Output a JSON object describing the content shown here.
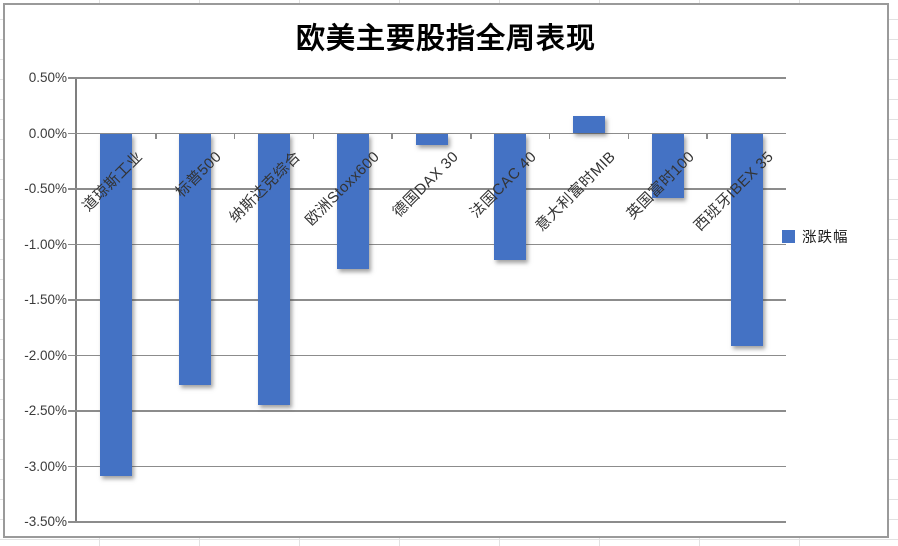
{
  "chart_data": {
    "type": "bar",
    "title": "欧美主要股指全周表现",
    "categories": [
      "道琼斯工业",
      "标普500",
      "纳斯达克综合",
      "欧洲Stoxx600",
      "德国DAX 30",
      "法国CAC 40",
      "意大利富时MIB",
      "英国富时100",
      "西班牙IBEX 35"
    ],
    "series": [
      {
        "name": "涨跌幅",
        "values": [
          -3.09,
          -2.27,
          -2.45,
          -1.22,
          -0.1,
          -1.14,
          0.16,
          -0.58,
          -1.91
        ]
      }
    ],
    "y_ticks": [
      "0.50%",
      "0.00%",
      "-0.50%",
      "-1.00%",
      "-1.50%",
      "-2.00%",
      "-2.50%",
      "-3.00%",
      "-3.50%"
    ],
    "ylim": [
      -3.5,
      0.5
    ],
    "xlabel": "",
    "ylabel": "",
    "grid": true,
    "legend_position": "right",
    "colors": {
      "bar": "#4472C4",
      "gridline": "#8c8c8c",
      "axis": "#7f7f7f",
      "tick_labels": "#3b3b3b",
      "title": "#000000",
      "frame_border": "#9a9a9a"
    }
  },
  "legend": {
    "label": "涨跌幅"
  }
}
